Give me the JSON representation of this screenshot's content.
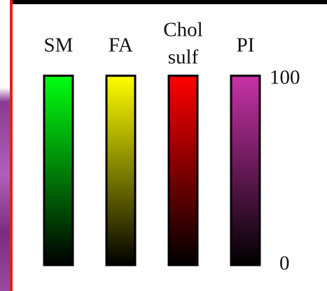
{
  "legend": {
    "bars": [
      {
        "lines": [
          "SM"
        ],
        "color": "#00ff10"
      },
      {
        "lines": [
          "FA"
        ],
        "color": "#ffff00"
      },
      {
        "lines": [
          "Chol",
          "sulf"
        ],
        "color": "#ff0000"
      },
      {
        "lines": [
          "PI"
        ],
        "color": "#c832a8"
      }
    ],
    "scale": {
      "max": "100",
      "min": "0"
    }
  }
}
